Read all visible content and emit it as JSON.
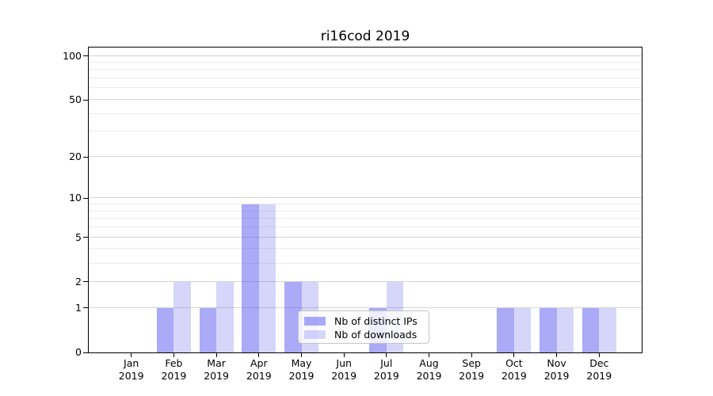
{
  "chart_data": {
    "type": "bar",
    "title": "ri16cod 2019",
    "categories": [
      "Jan",
      "Feb",
      "Mar",
      "Apr",
      "May",
      "Jun",
      "Jul",
      "Aug",
      "Sep",
      "Oct",
      "Nov",
      "Dec"
    ],
    "category_year": "2019",
    "series": [
      {
        "name": "Nb of distinct IPs",
        "color": "rgba(85,85,240,0.5)",
        "color_flat": "#aaaaf8",
        "values": [
          0,
          1,
          1,
          9,
          2,
          0,
          1,
          0,
          0,
          1,
          1,
          1
        ]
      },
      {
        "name": "Nb of downloads",
        "color": "rgba(85,85,240,0.24)",
        "color_flat": "#d8d8f8",
        "values": [
          0,
          2,
          2,
          9,
          2,
          0,
          2,
          0,
          0,
          1,
          1,
          1
        ]
      }
    ],
    "xlabel": "",
    "ylabel": "",
    "yscale": "log1p",
    "ylim": [
      0,
      114
    ],
    "yticks": [
      0,
      1,
      2,
      5,
      10,
      20,
      50,
      100
    ],
    "yticks_minor": [
      3,
      4,
      6,
      7,
      8,
      9,
      30,
      40,
      60,
      70,
      80,
      90
    ],
    "grid": "horizontal",
    "legend": {
      "position": "lower center",
      "entries": [
        "Nb of distinct IPs",
        "Nb of downloads"
      ]
    }
  },
  "colors": {
    "background": "#ffffff",
    "spine": "#000000",
    "grid_major": "#d4d4d4",
    "grid_minor": "#ebebeb",
    "bar_dark": "#aaaaf8",
    "bar_light": "#d8d8f8",
    "legend_border": "#c4c4c4"
  }
}
